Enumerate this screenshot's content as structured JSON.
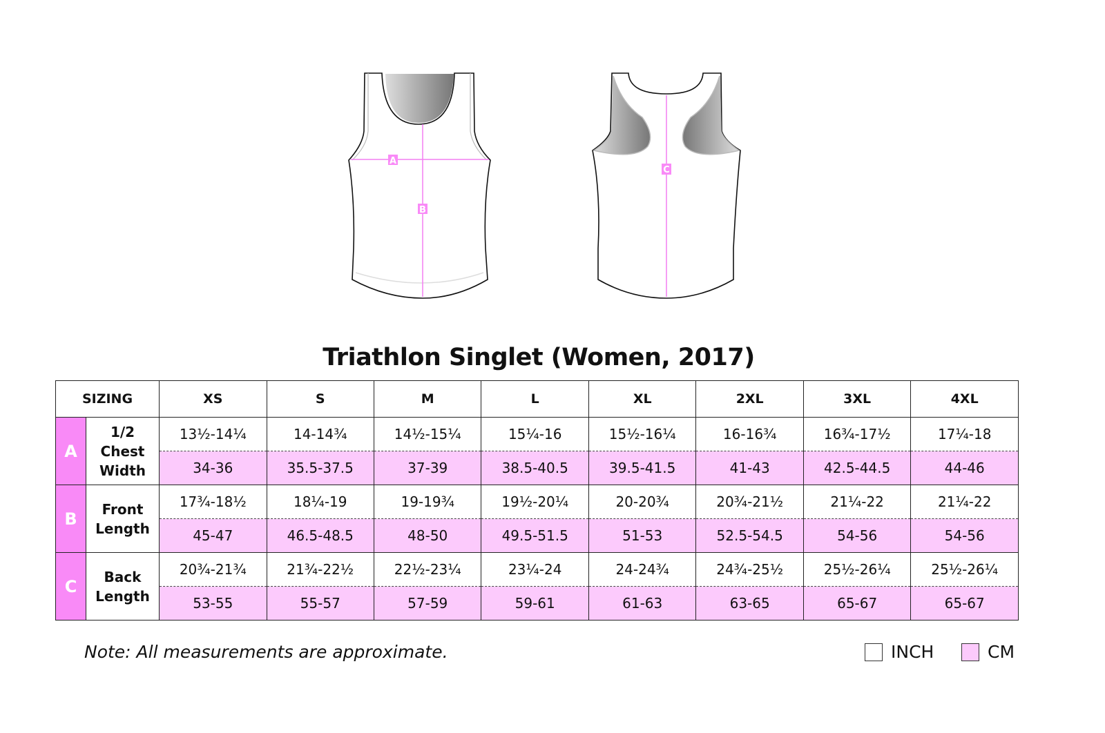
{
  "title": "Triathlon Singlet (Women, 2017)",
  "diagram_labels": {
    "a": "A",
    "b": "B",
    "c": "C"
  },
  "table": {
    "corner": "SIZING",
    "sizes": [
      "XS",
      "S",
      "M",
      "L",
      "XL",
      "2XL",
      "3XL",
      "4XL"
    ],
    "rows": [
      {
        "letter": "A",
        "name_lines": [
          "1/2",
          "Chest",
          "Width"
        ],
        "inch": [
          "13½-14¼",
          "14-14¾",
          "14½-15¼",
          "15¼-16",
          "15½-16¼",
          "16-16¾",
          "16¾-17½",
          "17¼-18"
        ],
        "cm": [
          "34-36",
          "35.5-37.5",
          "37-39",
          "38.5-40.5",
          "39.5-41.5",
          "41-43",
          "42.5-44.5",
          "44-46"
        ]
      },
      {
        "letter": "B",
        "name_lines": [
          "Front",
          "Length"
        ],
        "inch": [
          "17¾-18½",
          "18¼-19",
          "19-19¾",
          "19½-20¼",
          "20-20¾",
          "20¾-21½",
          "21¼-22",
          "21¼-22"
        ],
        "cm": [
          "45-47",
          "46.5-48.5",
          "48-50",
          "49.5-51.5",
          "51-53",
          "52.5-54.5",
          "54-56",
          "54-56"
        ]
      },
      {
        "letter": "C",
        "name_lines": [
          "Back",
          "Length"
        ],
        "inch": [
          "20¾-21¾",
          "21¾-22½",
          "22½-23¼",
          "23¼-24",
          "24-24¾",
          "24¾-25½",
          "25½-26¼",
          "25½-26¼"
        ],
        "cm": [
          "53-55",
          "55-57",
          "57-59",
          "59-61",
          "61-63",
          "63-65",
          "65-67",
          "65-67"
        ]
      }
    ]
  },
  "note": "Note: All measurements are approximate.",
  "legend": {
    "inch": "INCH",
    "cm": "CM"
  },
  "colors": {
    "cm_fill": "#fccafc",
    "letter_fill": "#f98af7",
    "measure_line": "#f47ff2"
  }
}
